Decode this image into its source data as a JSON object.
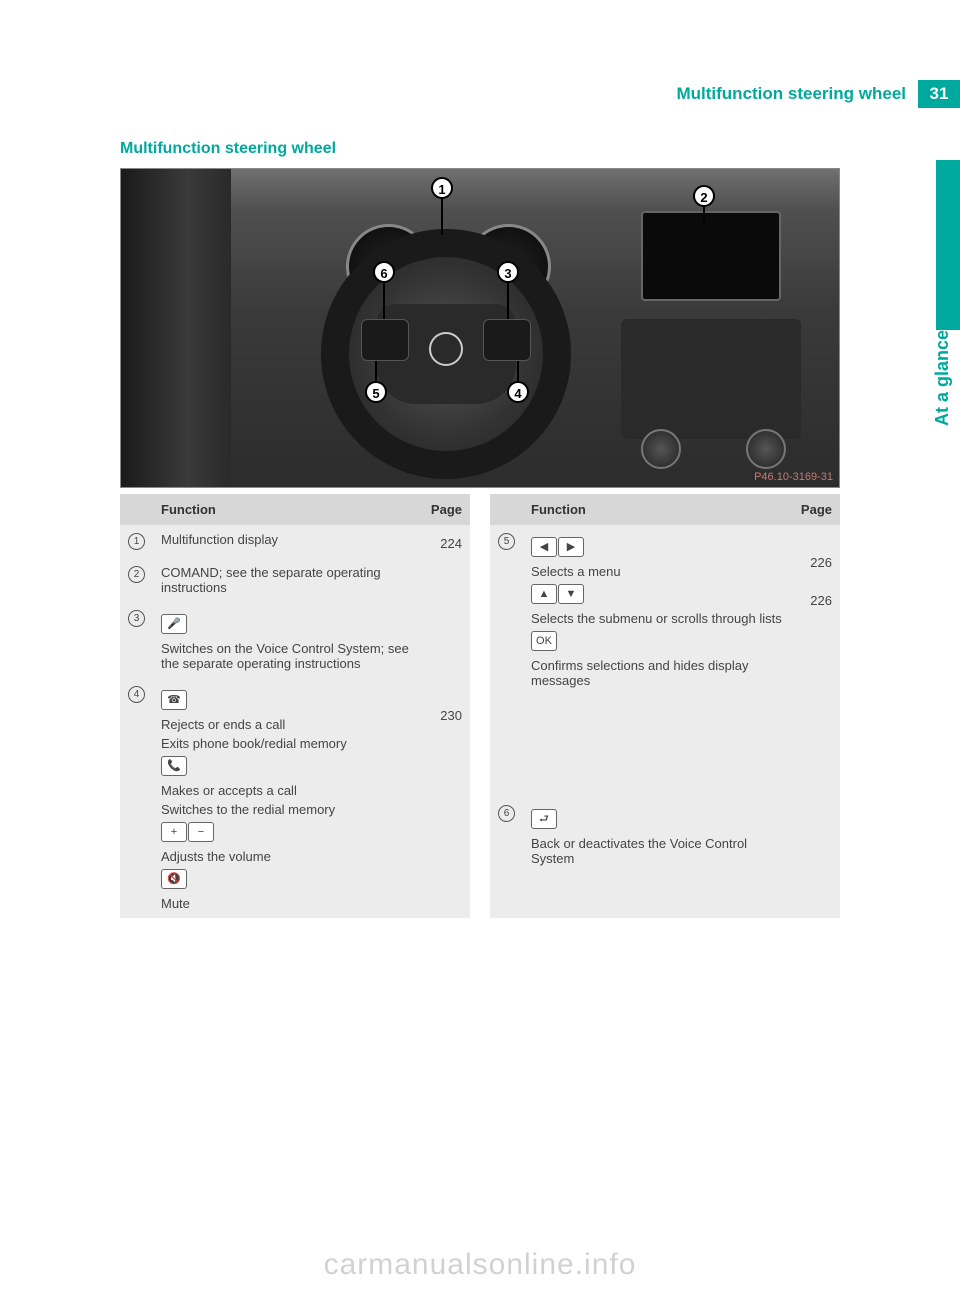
{
  "header": {
    "title": "Multifunction steering wheel",
    "page_number": "31"
  },
  "side_label": "At a glance",
  "section_title": "Multifunction steering wheel",
  "image_ref": "P46.10-3169-31",
  "callouts": [
    "1",
    "2",
    "3",
    "4",
    "5",
    "6"
  ],
  "table_headers": {
    "function": "Function",
    "page": "Page"
  },
  "left_rows": [
    {
      "idx": "1",
      "lines": [
        {
          "text": "Multifunction display"
        }
      ],
      "page": "224"
    },
    {
      "idx": "2",
      "lines": [
        {
          "text": "COMAND; see the separate operating instructions"
        }
      ],
      "page": ""
    },
    {
      "idx": "3",
      "lines": [
        {
          "keys": [
            "🎤"
          ]
        },
        {
          "text": "Switches on the Voice Control System; see the separate operating instructions"
        }
      ],
      "page": ""
    },
    {
      "idx": "4",
      "lines": [
        {
          "keys": [
            "☎"
          ]
        },
        {
          "text": "Rejects or ends a call",
          "page": "230"
        },
        {
          "text": "Exits phone book/redial memory"
        },
        {
          "keys": [
            "📞"
          ]
        },
        {
          "text": "Makes or accepts a call"
        },
        {
          "text": "Switches to the redial memory"
        },
        {
          "keys": [
            "+",
            "−"
          ]
        },
        {
          "text": "Adjusts the volume"
        },
        {
          "keys": [
            "🔇"
          ]
        },
        {
          "text": "Mute"
        }
      ],
      "page": ""
    }
  ],
  "right_rows": [
    {
      "idx": "5",
      "lines": [
        {
          "keys": [
            "◀",
            "▶"
          ]
        },
        {
          "text": "Selects a menu",
          "page": "226"
        },
        {
          "keys": [
            "▲",
            "▼"
          ]
        },
        {
          "text": "Selects the submenu or scrolls through lists",
          "page": "226"
        },
        {
          "keys": [
            "OK"
          ]
        },
        {
          "text": "Confirms selections and hides display messages"
        }
      ],
      "page": ""
    },
    {
      "idx": "6",
      "lines": [
        {
          "keys": [
            "⮐"
          ]
        },
        {
          "text": "Back or deactivates the Voice Control System"
        }
      ],
      "page": ""
    }
  ],
  "watermark": "carmanualsonline.info",
  "colors": {
    "teal": "#00a99d",
    "row_bg": "#ececec",
    "header_bg": "#d7d7d7",
    "text": "#4a4a4a"
  }
}
